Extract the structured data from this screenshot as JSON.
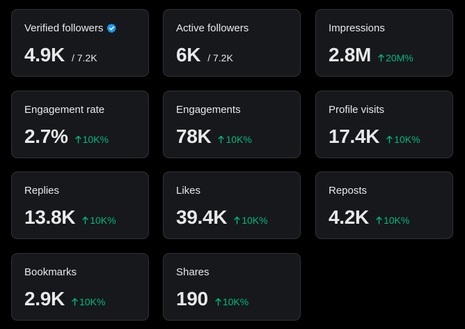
{
  "colors": {
    "background": "#000000",
    "card": "#16181c",
    "border": "#2f3336",
    "text": "#e7e9ea",
    "positive": "#00ba7c",
    "verified": "#1d9bf0"
  },
  "cards": {
    "verified_followers": {
      "label": "Verified followers",
      "value": "4.9K",
      "total": "/ 7.2K",
      "icon": "verified-badge-icon"
    },
    "active_followers": {
      "label": "Active followers",
      "value": "6K",
      "total": "/ 7.2K"
    },
    "impressions": {
      "label": "Impressions",
      "value": "2.8M",
      "change": "20M%"
    },
    "engagement_rate": {
      "label": "Engagement rate",
      "value": "2.7%",
      "change": "10K%"
    },
    "engagements": {
      "label": "Engagements",
      "value": "78K",
      "change": "10K%"
    },
    "profile_visits": {
      "label": "Profile visits",
      "value": "17.4K",
      "change": "10K%"
    },
    "replies": {
      "label": "Replies",
      "value": "13.8K",
      "change": "10K%"
    },
    "likes": {
      "label": "Likes",
      "value": "39.4K",
      "change": "10K%"
    },
    "reposts": {
      "label": "Reposts",
      "value": "4.2K",
      "change": "10K%"
    },
    "bookmarks": {
      "label": "Bookmarks",
      "value": "2.9K",
      "change": "10K%"
    },
    "shares": {
      "label": "Shares",
      "value": "190",
      "change": "10K%"
    }
  }
}
